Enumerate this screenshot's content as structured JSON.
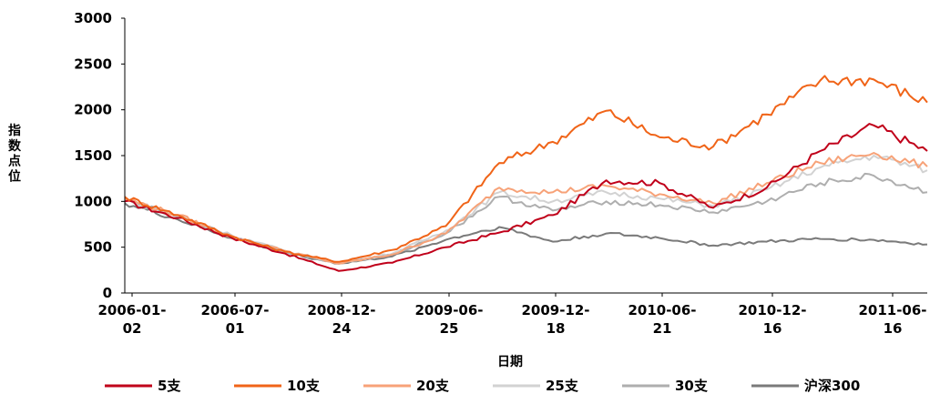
{
  "chart_data": {
    "type": "line",
    "title": "",
    "xlabel": "日期",
    "ylabel": "指数点位",
    "ylim": [
      0,
      3000
    ],
    "yticks": [
      "0",
      "500",
      "1000",
      "1500",
      "2000",
      "2500",
      "3000"
    ],
    "x_ticks": [
      [
        "2006-01-",
        "02"
      ],
      [
        "2006-07-",
        "01"
      ],
      [
        "2008-12-",
        "24"
      ],
      [
        "2009-06-",
        "25"
      ],
      [
        "2009-12-",
        "18"
      ],
      [
        "2010-06-",
        "21"
      ],
      [
        "2010-12-",
        "16"
      ],
      [
        "2011-06-",
        "16"
      ]
    ],
    "x": [
      0,
      0.5,
      1,
      1.5,
      2,
      2.5,
      3,
      3.5,
      4,
      4.5,
      5,
      5.5,
      6,
      6.5,
      7,
      7.5
    ],
    "legend_position": "bottom",
    "series": [
      {
        "name": "5支",
        "color": "#c0001a",
        "values": [
          1000,
          820,
          600,
          430,
          240,
          330,
          500,
          660,
          850,
          1230,
          1200,
          930,
          1150,
          1550,
          1830,
          1550
        ]
      },
      {
        "name": "10支",
        "color": "#f06418",
        "values": [
          1050,
          850,
          620,
          450,
          340,
          470,
          730,
          1420,
          1650,
          1990,
          1700,
          1600,
          1950,
          2320,
          2330,
          2080
        ]
      },
      {
        "name": "20支",
        "color": "#f7a278",
        "values": [
          1030,
          850,
          610,
          460,
          320,
          420,
          650,
          1150,
          1100,
          1170,
          1080,
          980,
          1200,
          1420,
          1530,
          1380
        ]
      },
      {
        "name": "25支",
        "color": "#d2d2d2",
        "values": [
          1020,
          840,
          630,
          460,
          330,
          430,
          680,
          1100,
          1000,
          1100,
          1030,
          950,
          1130,
          1370,
          1500,
          1340
        ]
      },
      {
        "name": "30支",
        "color": "#aeaeae",
        "values": [
          1010,
          830,
          620,
          450,
          325,
          420,
          650,
          1050,
          900,
          1000,
          960,
          880,
          1000,
          1200,
          1280,
          1100
        ]
      },
      {
        "name": "沪深300",
        "color": "#7a7a7a",
        "values": [
          980,
          800,
          600,
          440,
          320,
          400,
          580,
          720,
          560,
          650,
          600,
          520,
          560,
          590,
          580,
          530
        ]
      }
    ]
  }
}
